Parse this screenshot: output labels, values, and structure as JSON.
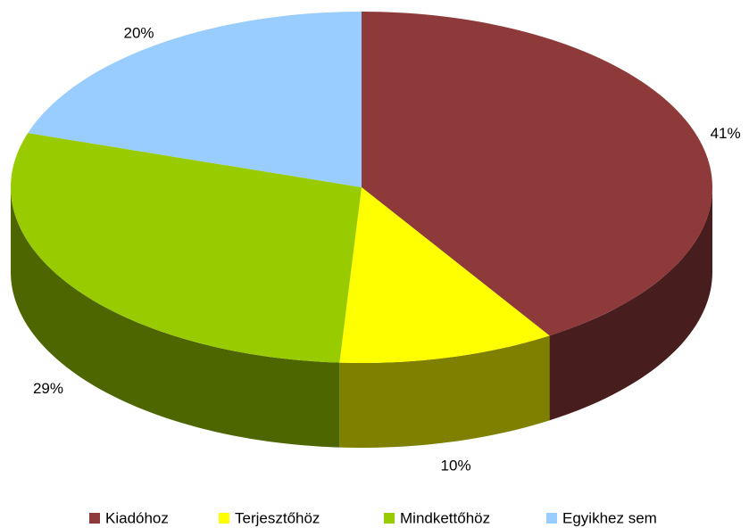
{
  "chart_data": {
    "type": "pie",
    "categories": [
      "Kiadóhoz",
      "Terjesztőhöz",
      "Mindkettőhöz",
      "Egyikhez sem"
    ],
    "values": [
      41,
      10,
      29,
      20
    ],
    "value_labels": [
      "41%",
      "10%",
      "29%",
      "20%"
    ],
    "colors": [
      "#8f3a3a",
      "#ffff00",
      "#99cc00",
      "#99ccff"
    ],
    "legend": "bottom"
  }
}
